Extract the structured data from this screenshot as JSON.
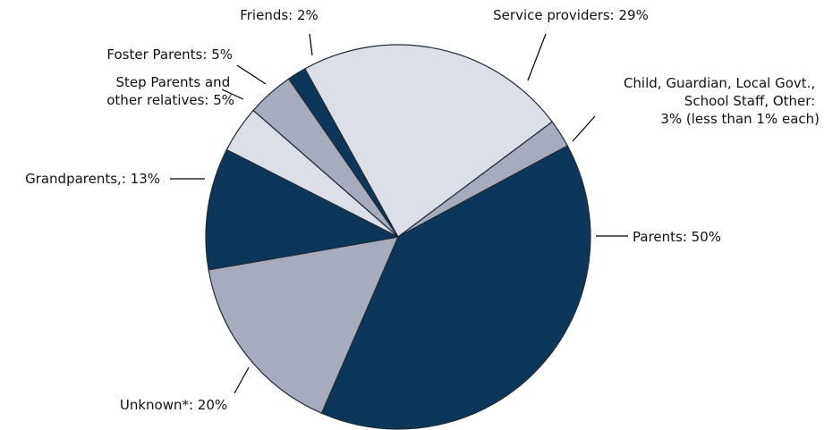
{
  "chart_data": {
    "type": "pie",
    "slices": [
      {
        "label": "Service providers: 29%",
        "value": 29,
        "color": "#dcdfe6"
      },
      {
        "label": "Child, Guardian, Local Govt., School Staff, Other: 3% (less than 1% each)",
        "value": 3,
        "color": "#a6abbd"
      },
      {
        "label": "Parents: 50%",
        "value": 50,
        "color": "#0c365a"
      },
      {
        "label": "Unknown*: 20%",
        "value": 20,
        "color": "#a6abbd"
      },
      {
        "label": "Grandparents,: 13%",
        "value": 13,
        "color": "#0c365a"
      },
      {
        "label": "Step Parents and other relatives: 5%",
        "value": 5,
        "color": "#dcdfe6"
      },
      {
        "label": "Foster Parents: 5%",
        "value": 5,
        "color": "#a6abbd"
      },
      {
        "label": "Friends: 2%",
        "value": 2,
        "color": "#0c365a"
      }
    ],
    "label_lines": {
      "friends": [
        "Friends: 2%"
      ],
      "service_providers": [
        "Service providers: 29%"
      ],
      "child_guardian": [
        "Child, Guardian, Local Govt.,",
        "School Staff, Other:",
        "3% (less than 1% each)"
      ],
      "foster_parents": [
        "Foster Parents: 5%"
      ],
      "step_parents": [
        "Step Parents and",
        "other relatives: 5%"
      ],
      "grandparents": [
        "Grandparents,: 13%"
      ],
      "parents": [
        "Parents: 50%"
      ],
      "unknown": [
        "Unknown*: 20%"
      ]
    }
  }
}
